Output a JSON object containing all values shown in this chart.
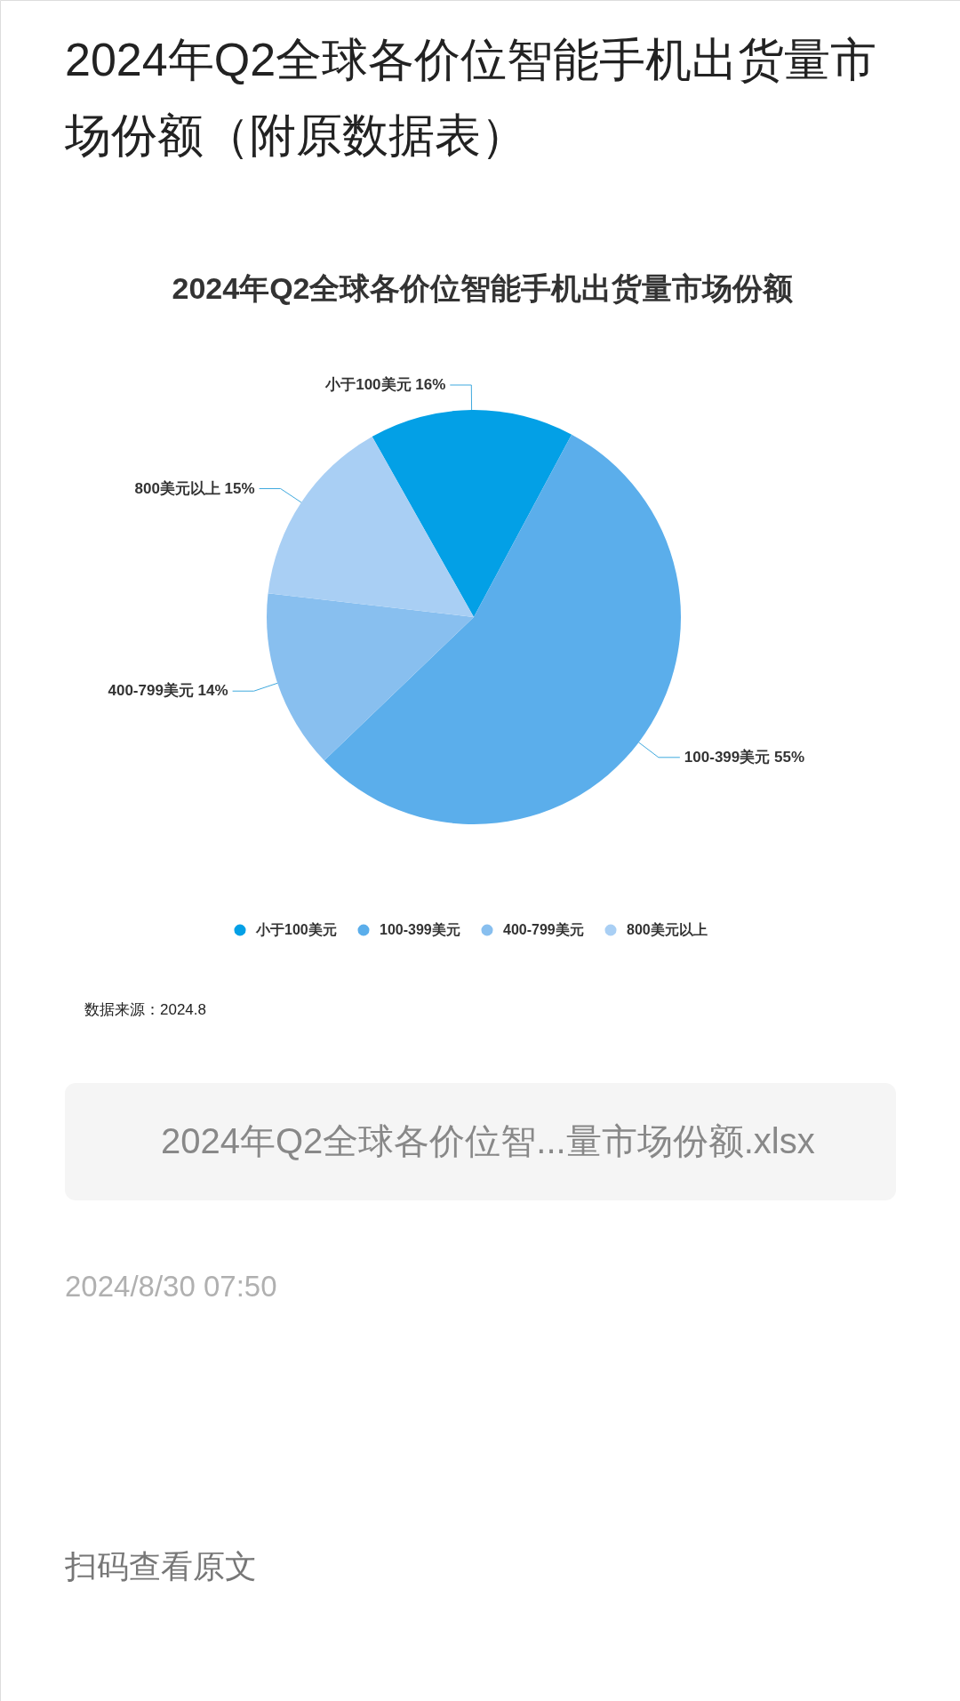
{
  "chart_data": {
    "type": "pie",
    "title": "2024年Q2全球各价位智能手机出货量市场份额（附原数据表）",
    "subtitle": "2024年Q2全球各价位智能手机出货量市场份额",
    "categories": [
      "小于100美元",
      "100-399美元",
      "400-799美元",
      "800美元以上"
    ],
    "values": [
      16,
      55,
      14,
      15
    ],
    "colors": [
      "#03a0e6",
      "#5baeeb",
      "#88bfef",
      "#a9cff4"
    ],
    "value_labels": [
      "16%",
      "55%",
      "14%",
      "15%"
    ],
    "legend": "bottom",
    "annotations": [
      "数据来源：2024.8",
      "2024年Q2全球各价位智...量市场份额.xlsx",
      "2024/8/30 07:50",
      "扫码查看原文"
    ]
  }
}
